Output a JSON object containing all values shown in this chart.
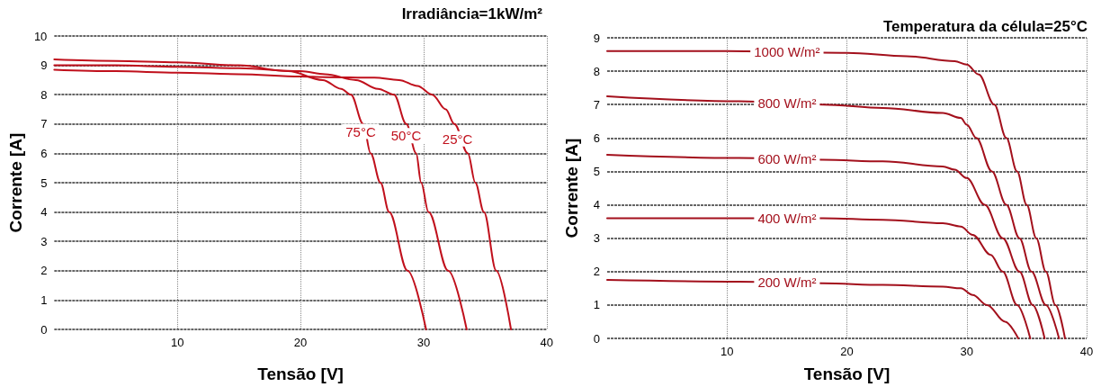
{
  "chart_data": [
    {
      "type": "line",
      "title": "Irradiância=1kW/m²",
      "xlabel": "Tensão [V]",
      "ylabel": "Corrente [A]",
      "xlim": [
        0,
        40
      ],
      "xticks": [
        10,
        20,
        30,
        40
      ],
      "ylim": [
        0,
        10
      ],
      "yticks": [
        0,
        1,
        2,
        3,
        4,
        5,
        6,
        7,
        8,
        9,
        10
      ],
      "grid": true,
      "series": [
        {
          "name": "75°C",
          "color": "#c0101c",
          "x": [
            0,
            5,
            10,
            15,
            19,
            21.8,
            23.3,
            24.1,
            25.1,
            25.7,
            26.5,
            27.2,
            28.7,
            30.2
          ],
          "values": [
            9.2,
            9.15,
            9.1,
            9.0,
            8.8,
            8.5,
            8.2,
            8,
            7,
            6,
            5,
            4,
            2,
            0
          ]
        },
        {
          "name": "50°C",
          "color": "#c0101c",
          "x": [
            0,
            5,
            10,
            15,
            20,
            22,
            24.5,
            26.3,
            27.6,
            28.6,
            29.4,
            29.8,
            30.4,
            32,
            33.5
          ],
          "values": [
            9.0,
            9.0,
            8.95,
            8.9,
            8.8,
            8.7,
            8.5,
            8.2,
            8,
            7,
            6,
            5,
            4,
            2,
            0
          ]
        },
        {
          "name": "25°C",
          "color": "#c0101c",
          "x": [
            0,
            5,
            10,
            15,
            20,
            22,
            26,
            28,
            29.5,
            30.7,
            31.8,
            32.5,
            33.6,
            34.2,
            34.9,
            35.9,
            37.1
          ],
          "values": [
            8.85,
            8.8,
            8.75,
            8.7,
            8.62,
            8.6,
            8.58,
            8.5,
            8.3,
            8,
            7.5,
            7,
            6,
            5,
            4,
            2,
            0
          ]
        }
      ]
    },
    {
      "type": "line",
      "title": "Temperatura da célula=25°C",
      "xlabel": "Tensão [V]",
      "ylabel": "Corrente [A]",
      "xlim": [
        0,
        40
      ],
      "xticks": [
        10,
        20,
        30,
        40
      ],
      "ylim": [
        0,
        9
      ],
      "yticks": [
        0,
        1,
        2,
        3,
        4,
        5,
        6,
        7,
        8,
        9
      ],
      "grid": true,
      "series": [
        {
          "name": "1000 W/m²",
          "color": "#a3101c",
          "x": [
            0,
            10,
            20,
            25,
            29,
            30,
            31,
            32.3,
            33.3,
            34.2,
            35,
            35.8,
            36.6,
            37.4,
            38.2
          ],
          "values": [
            8.6,
            8.6,
            8.55,
            8.45,
            8.3,
            8.2,
            7.9,
            7,
            6,
            5,
            4,
            3,
            2,
            1,
            0
          ]
        },
        {
          "name": "800 W/m²",
          "color": "#a3101c",
          "x": [
            0,
            11,
            18,
            23,
            28,
            29.5,
            30,
            30.8,
            32.1,
            33.3,
            34.4,
            35.4,
            36.6,
            37.7
          ],
          "values": [
            7.25,
            7.1,
            7.0,
            6.9,
            6.75,
            6.6,
            6.4,
            6,
            5,
            4,
            3,
            2,
            1,
            0
          ]
        },
        {
          "name": "600 W/m²",
          "color": "#a3101c",
          "x": [
            0,
            11,
            18,
            23,
            28,
            29,
            30,
            31.5,
            33,
            34.4,
            35.5,
            36.5
          ],
          "values": [
            5.5,
            5.4,
            5.35,
            5.3,
            5.15,
            5.05,
            4.8,
            4,
            3,
            2,
            1,
            0
          ]
        },
        {
          "name": "400 W/m²",
          "color": "#a3101c",
          "x": [
            0,
            11,
            18,
            23,
            28,
            29.5,
            30.5,
            32,
            33,
            34.2,
            35.3
          ],
          "values": [
            3.6,
            3.6,
            3.6,
            3.55,
            3.45,
            3.35,
            3.1,
            2.5,
            2,
            1,
            0
          ]
        },
        {
          "name": "200 W/m²",
          "color": "#a3101c",
          "x": [
            0,
            11,
            18,
            23,
            28,
            29.5,
            30.5,
            31.7,
            33.2,
            34.3
          ],
          "values": [
            1.75,
            1.7,
            1.65,
            1.6,
            1.55,
            1.5,
            1.3,
            1.0,
            0.5,
            0
          ]
        }
      ]
    }
  ]
}
